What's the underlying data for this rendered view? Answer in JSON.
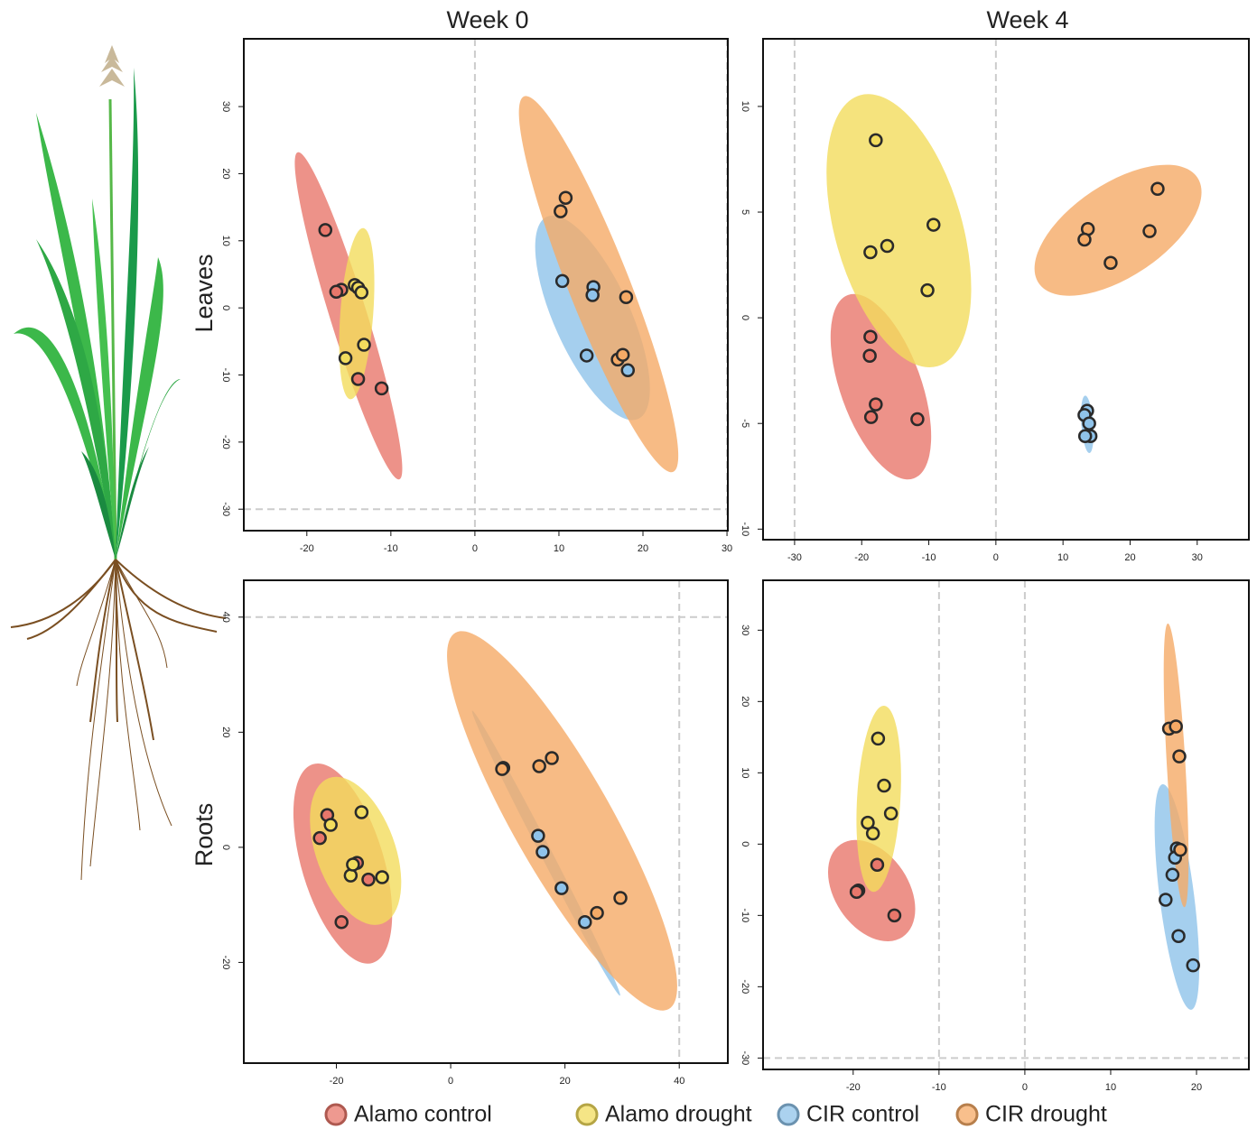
{
  "column_titles": [
    "Week 0",
    "Week 4"
  ],
  "row_titles": [
    "Leaves",
    "Roots"
  ],
  "chart_data": [
    {
      "type": "scatter",
      "xlim": [
        -27.5,
        30.1
      ],
      "ylim": [
        -33.2,
        40.1
      ],
      "xticks": [
        -20,
        -10,
        0,
        10,
        20,
        30
      ],
      "yticks": [
        -30,
        -20,
        -10,
        0,
        10,
        20,
        30
      ],
      "vlines": [
        0,
        30
      ],
      "hlines": [
        -30
      ],
      "series": [
        {
          "name": "Alamo control",
          "color": "#e8776b",
          "x": [
            -17.8,
            -15.9,
            -13.9,
            -11.1,
            -16.5
          ],
          "y": [
            11.6,
            2.7,
            -10.6,
            -12.0,
            2.4
          ]
        },
        {
          "name": "Alamo drought",
          "color": "#f2dc5d",
          "x": [
            -14.3,
            -13.9,
            -13.5,
            -15.4,
            -13.2
          ],
          "y": [
            3.4,
            3.0,
            2.3,
            -7.5,
            -5.5
          ]
        },
        {
          "name": "CIR control",
          "color": "#8fc3ea",
          "x": [
            10.4,
            14.1,
            14.0,
            13.3,
            18.2
          ],
          "y": [
            4.0,
            3.1,
            1.9,
            -7.1,
            -9.3
          ]
        },
        {
          "name": "CIR drought",
          "color": "#f5aa66",
          "x": [
            10.8,
            10.2,
            18.0,
            17.0,
            17.6
          ],
          "y": [
            16.4,
            14.4,
            1.6,
            -7.7,
            -7.0
          ]
        }
      ]
    },
    {
      "type": "scatter",
      "xlim": [
        -34.7,
        37.7
      ],
      "ylim": [
        -10.5,
        13.2
      ],
      "xticks": [
        -30,
        -20,
        -10,
        0,
        10,
        20,
        30
      ],
      "yticks": [
        -10,
        -5,
        0,
        5,
        10
      ],
      "vlines": [
        -30,
        0
      ],
      "hlines": [],
      "series": [
        {
          "name": "Alamo control",
          "color": "#e8776b",
          "x": [
            -18.7,
            -18.8,
            -17.9,
            -18.6,
            -11.7
          ],
          "y": [
            -0.9,
            -1.8,
            -4.1,
            -4.7,
            -4.8
          ]
        },
        {
          "name": "Alamo drought",
          "color": "#f2dc5d",
          "x": [
            -17.9,
            -18.7,
            -16.2,
            -9.3,
            -10.2
          ],
          "y": [
            8.4,
            3.1,
            3.4,
            4.4,
            1.3
          ]
        },
        {
          "name": "CIR control",
          "color": "#8fc3ea",
          "x": [
            13.6,
            13.2,
            13.9,
            14.1,
            13.3
          ],
          "y": [
            -4.4,
            -4.6,
            -5.0,
            -5.6,
            -5.6
          ]
        },
        {
          "name": "CIR drought",
          "color": "#f5aa66",
          "x": [
            13.7,
            24.1,
            22.9,
            17.1,
            13.2
          ],
          "y": [
            4.2,
            6.1,
            4.1,
            2.6,
            3.7
          ]
        }
      ]
    },
    {
      "type": "scatter",
      "xlim": [
        -36.2,
        48.5
      ],
      "ylim": [
        -37.5,
        46.4
      ],
      "xticks": [
        -20,
        0,
        20,
        40
      ],
      "yticks": [
        -20,
        0,
        20,
        40
      ],
      "vlines": [
        40
      ],
      "hlines": [
        40
      ],
      "series": [
        {
          "name": "Alamo control",
          "color": "#e8776b",
          "x": [
            -22.9,
            -21.6,
            -19.1,
            -16.4,
            -14.4
          ],
          "y": [
            1.6,
            5.6,
            -13.0,
            -2.7,
            -5.6
          ]
        },
        {
          "name": "Alamo drought",
          "color": "#f2dc5d",
          "x": [
            -21.0,
            -15.6,
            -17.5,
            -17.1,
            -12.0
          ],
          "y": [
            3.9,
            6.1,
            -4.9,
            -3.0,
            -5.2
          ]
        },
        {
          "name": "CIR control",
          "color": "#8fc3ea",
          "x": [
            9.2,
            15.3,
            16.1,
            19.4,
            23.5
          ],
          "y": [
            13.8,
            2.0,
            -0.8,
            -7.1,
            -13.0
          ]
        },
        {
          "name": "CIR drought",
          "color": "#f5aa66",
          "x": [
            9.0,
            15.5,
            17.7,
            25.6,
            29.7
          ],
          "y": [
            13.6,
            14.1,
            15.5,
            -11.4,
            -8.8
          ]
        }
      ]
    },
    {
      "type": "scatter",
      "xlim": [
        -30.5,
        26.1
      ],
      "ylim": [
        -31.6,
        37.0
      ],
      "xticks": [
        -20,
        -10,
        0,
        10,
        20
      ],
      "yticks": [
        -30,
        -20,
        -10,
        0,
        10,
        20,
        30
      ],
      "vlines": [
        -10,
        0
      ],
      "hlines": [
        -30
      ],
      "series": [
        {
          "name": "Alamo control",
          "color": "#e8776b",
          "x": [
            -17.2,
            -19.4,
            -19.6,
            -15.2
          ],
          "y": [
            -2.9,
            -6.5,
            -6.7,
            -10.0
          ]
        },
        {
          "name": "Alamo drought",
          "color": "#f2dc5d",
          "x": [
            -17.1,
            -16.4,
            -15.6,
            -18.3,
            -17.7
          ],
          "y": [
            14.8,
            8.2,
            4.3,
            3.0,
            1.5
          ]
        },
        {
          "name": "CIR control",
          "color": "#8fc3ea",
          "x": [
            17.7,
            17.5,
            17.2,
            16.4,
            17.9,
            19.6
          ],
          "y": [
            -0.6,
            -1.9,
            -4.3,
            -7.8,
            -12.9,
            -17.0
          ]
        },
        {
          "name": "CIR drought",
          "color": "#f5aa66",
          "x": [
            16.8,
            17.6,
            18.0,
            18.1
          ],
          "y": [
            16.2,
            16.5,
            12.3,
            -0.8
          ]
        }
      ]
    }
  ]
}
